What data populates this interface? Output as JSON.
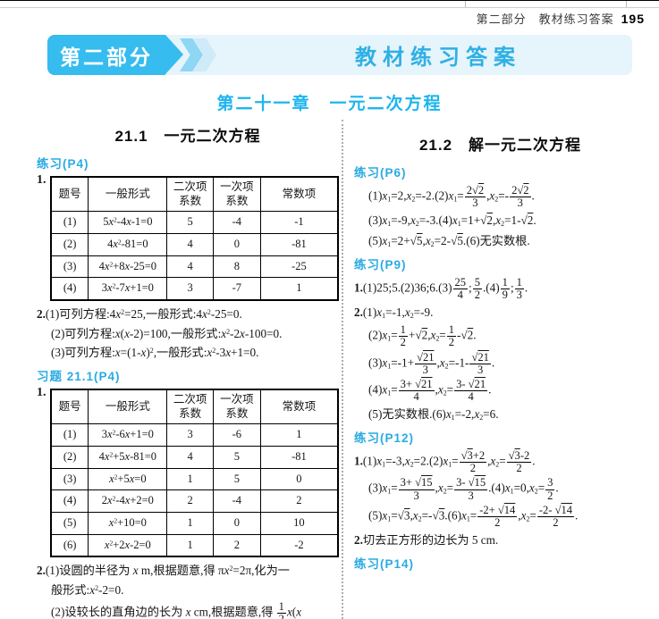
{
  "page": {
    "header_part": "第二部分",
    "header_title": "教材练习答案",
    "page_number": "195"
  },
  "banner": {
    "part_label": "第二部分",
    "title": "教材练习答案"
  },
  "chapter_title": "第二十一章　一元二次方程",
  "colors": {
    "accent_blue": "#36bcee",
    "banner_bg": "#e6f4fc",
    "label_blue": "#29abe2",
    "chapter_blue": "#1db5ef"
  },
  "left": {
    "section_title": "21.1　一元二次方程",
    "ex_p4_label": "练习(P4)",
    "item1_no": "1.",
    "table1": {
      "headers": [
        "题号",
        "一般形式",
        "二次项\n系数",
        "一次项\n系数",
        "常数项"
      ],
      "rows": [
        [
          "(1)",
          "5#x#^2^-4#x#-1=0",
          "5",
          "-4",
          "-1"
        ],
        [
          "(2)",
          "4#x#^2^-81=0",
          "4",
          "0",
          "-81"
        ],
        [
          "(3)",
          "4#x#^2^+8#x#-25=0",
          "4",
          "8",
          "-25"
        ],
        [
          "(4)",
          "3#x#^2^-7#x#+1=0",
          "3",
          "-7",
          "1"
        ]
      ]
    },
    "item2_lines": [
      {
        "t": "2.(1)可列方程:4#x#^2^=25,一般形式:4#x#^2^-25=0.",
        "ind": 0
      },
      {
        "t": "(2)可列方程:#x#(#x#-2)=100,一般形式:#x#^2^-2#x#-100=0.",
        "ind": 1
      },
      {
        "t": "(3)可列方程:#x#=(1-#x#)^2^,一般形式:#x#^2^-3#x#+1=0.",
        "ind": 1
      }
    ],
    "hw_label": "习题 21.1(P4)",
    "item3_no": "1.",
    "table2": {
      "headers": [
        "题号",
        "一般形式",
        "二次项\n系数",
        "一次项\n系数",
        "常数项"
      ],
      "rows": [
        [
          "(1)",
          "3#x#^2^-6#x#+1=0",
          "3",
          "-6",
          "1"
        ],
        [
          "(2)",
          "4#x#^2^+5#x#-81=0",
          "4",
          "5",
          "-81"
        ],
        [
          "(3)",
          "#x#^2^+5#x#=0",
          "1",
          "5",
          "0"
        ],
        [
          "(4)",
          "2#x#^2^-4#x#+2=0",
          "2",
          "-4",
          "2"
        ],
        [
          "(5)",
          "#x#^2^+10=0",
          "1",
          "0",
          "10"
        ],
        [
          "(6)",
          "#x#^2^+2#x#-2=0",
          "1",
          "2",
          "-2"
        ]
      ]
    },
    "item4_lines": [
      {
        "t": "2.(1)设圆的半径为 #x# m,根据题意,得 π#x#^2^=2π,化为一",
        "ind": 0
      },
      {
        "t": "般形式:#x#^2^-2=0.",
        "ind": 1
      },
      {
        "t": "(2)设较长的直角边的长为 #x# cm,根据题意,得 {1|2}#x#(#x#",
        "ind": 1
      }
    ]
  },
  "right": {
    "section_title": "21.2　解一元二次方程",
    "p6_label": "练习(P6)",
    "p6_lines": [
      {
        "t": "(1)#x#_1_=2,#x#_2_=-2.(2)#x#_1_={2√(2)|3},#x#_2_=-{2√(2)|3}.",
        "ind": 1
      },
      {
        "t": "(3)#x#_1_=-9,#x#_2_=-3.(4)#x#_1_=1+√(2),#x#_2_=1-√(2).",
        "ind": 1
      },
      {
        "t": "(5)#x#_1_=2+√(5),#x#_2_=2-√(5).(6)无实数根.",
        "ind": 1
      }
    ],
    "p9_label": "练习(P9)",
    "p9_lines": [
      {
        "t": "1.(1)25;5.(2)36;6.(3){25|4};{5|2}.(4){1|9};{1|3}.",
        "ind": 0
      },
      {
        "t": "2.(1)#x#_1_=-1,#x#_2_=-9.",
        "ind": 0
      },
      {
        "t": "(2)#x#_1_={1|2}+√(2),#x#_2_={1|2}-√(2).",
        "ind": 1
      },
      {
        "t": "(3)#x#_1_=-1+{√(21)|3},#x#_2_=-1-{√(21)|3}.",
        "ind": 1
      },
      {
        "t": "(4)#x#_1_={3+ √(21)|4},#x#_2_={3- √(21)|4}.",
        "ind": 1
      },
      {
        "t": "(5)无实数根.(6)#x#_1_=-2,#x#_2_=6.",
        "ind": 1
      }
    ],
    "p12_label": "练习(P12)",
    "p12_lines": [
      {
        "t": "1.(1)#x#_1_=-3,#x#_2_=2.(2)#x#_1_={√(3)+2|2},#x#_2_={√(3)-2|2}.",
        "ind": 0
      },
      {
        "t": "(3)#x#_1_={3+ √(15)|3},#x#_2_={3- √(15)|3}.(4)#x#_1_=0,#x#_2_={3|2}.",
        "ind": 1
      },
      {
        "t": "(5)#x#_1_=√(3),#x#_2_=-√(3).(6)#x#_1_={-2+ √(14)|2},#x#_2_={-2- √(14)|2}.",
        "ind": 1
      },
      {
        "t": "2.切去正方形的边长为 5 cm.",
        "ind": 0
      }
    ],
    "p14_label": "练习(P14)"
  }
}
